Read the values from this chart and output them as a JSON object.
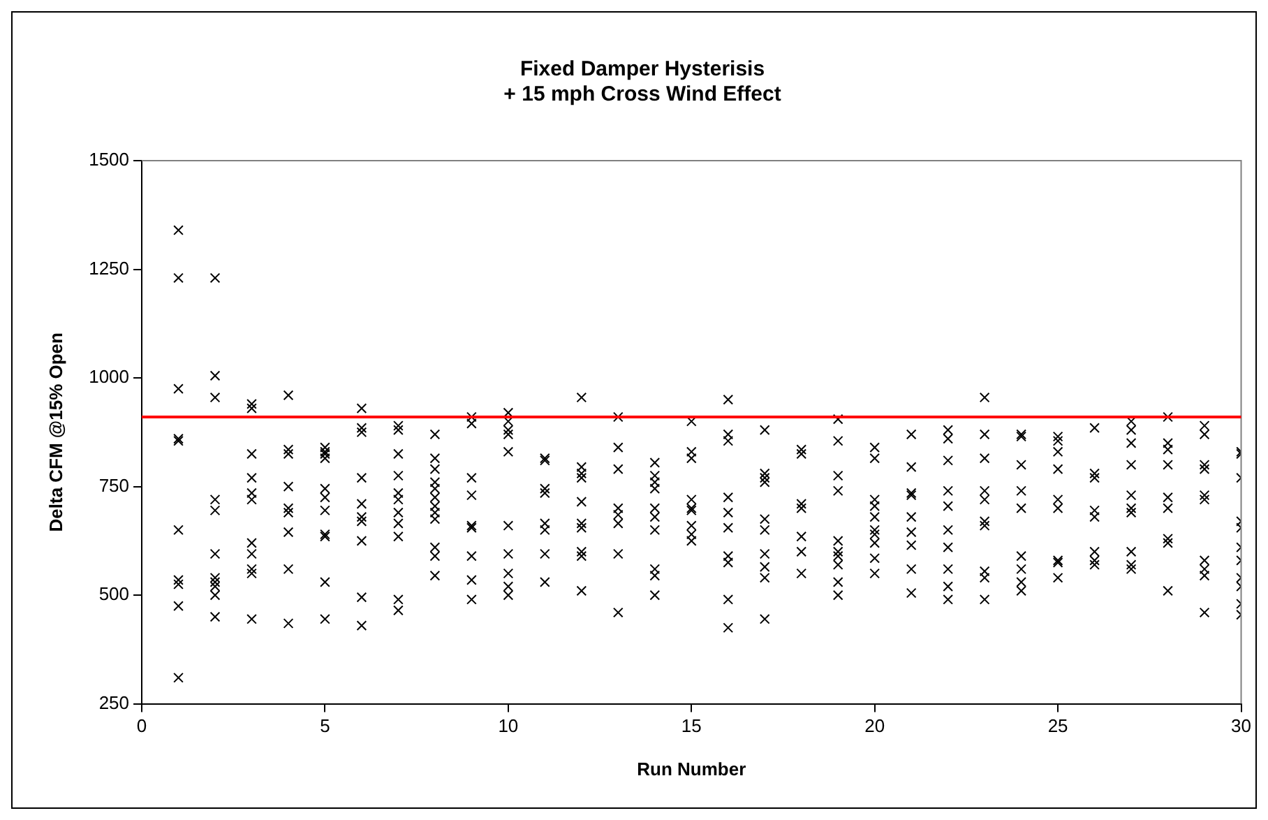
{
  "chart_data": {
    "type": "scatter",
    "title": "Fixed Damper Hysterisis\n+ 15 mph Cross Wind Effect",
    "xlabel": "Run Number",
    "ylabel": "Delta CFM @15% Open",
    "series": [
      {
        "color": "#000000",
        "x": [
          1,
          1,
          1,
          1,
          1,
          1,
          1,
          1,
          1,
          1,
          2,
          2,
          2,
          2,
          2,
          2,
          2,
          2,
          2,
          2,
          2,
          3,
          3,
          3,
          3,
          3,
          3,
          3,
          3,
          3,
          3,
          3,
          4,
          4,
          4,
          4,
          4,
          4,
          4,
          4,
          4,
          5,
          5,
          5,
          5,
          5,
          5,
          5,
          5,
          5,
          5,
          5,
          6,
          6,
          6,
          6,
          6,
          6,
          6,
          6,
          6,
          6,
          7,
          7,
          7,
          7,
          7,
          7,
          7,
          7,
          7,
          7,
          7,
          8,
          8,
          8,
          8,
          8,
          8,
          8,
          8,
          8,
          8,
          8,
          8,
          9,
          9,
          9,
          9,
          9,
          9,
          9,
          9,
          9,
          10,
          10,
          10,
          10,
          10,
          10,
          10,
          10,
          10,
          10,
          11,
          11,
          11,
          11,
          11,
          11,
          11,
          11,
          12,
          12,
          12,
          12,
          12,
          12,
          12,
          12,
          12,
          12,
          13,
          13,
          13,
          13,
          13,
          13,
          13,
          13,
          14,
          14,
          14,
          14,
          14,
          14,
          14,
          14,
          14,
          14,
          15,
          15,
          15,
          15,
          15,
          15,
          15,
          15,
          15,
          16,
          16,
          16,
          16,
          16,
          16,
          16,
          16,
          16,
          16,
          17,
          17,
          17,
          17,
          17,
          17,
          17,
          17,
          17,
          17,
          18,
          18,
          18,
          18,
          18,
          18,
          18,
          19,
          19,
          19,
          19,
          19,
          19,
          19,
          19,
          19,
          19,
          20,
          20,
          20,
          20,
          20,
          20,
          20,
          20,
          20,
          20,
          21,
          21,
          21,
          21,
          21,
          21,
          21,
          21,
          21,
          22,
          22,
          22,
          22,
          22,
          22,
          22,
          22,
          22,
          22,
          23,
          23,
          23,
          23,
          23,
          23,
          23,
          23,
          23,
          23,
          24,
          24,
          24,
          24,
          24,
          24,
          24,
          24,
          24,
          25,
          25,
          25,
          25,
          25,
          25,
          25,
          25,
          25,
          26,
          26,
          26,
          26,
          26,
          26,
          26,
          26,
          27,
          27,
          27,
          27,
          27,
          27,
          27,
          27,
          27,
          27,
          28,
          28,
          28,
          28,
          28,
          28,
          28,
          28,
          28,
          29,
          29,
          29,
          29,
          29,
          29,
          29,
          29,
          29,
          29,
          30,
          30,
          30,
          30,
          30,
          30,
          30,
          30,
          30,
          30,
          30
        ],
        "values": [
          1340,
          1230,
          975,
          860,
          855,
          650,
          535,
          525,
          475,
          310,
          1230,
          1005,
          955,
          720,
          695,
          595,
          540,
          530,
          520,
          500,
          450,
          940,
          930,
          825,
          770,
          735,
          720,
          620,
          595,
          560,
          550,
          445,
          960,
          835,
          825,
          750,
          700,
          690,
          645,
          560,
          435,
          840,
          830,
          825,
          815,
          745,
          725,
          695,
          640,
          635,
          530,
          445,
          930,
          885,
          875,
          770,
          710,
          680,
          670,
          625,
          495,
          430,
          890,
          880,
          825,
          775,
          735,
          720,
          690,
          665,
          635,
          490,
          465,
          870,
          815,
          790,
          760,
          745,
          725,
          705,
          690,
          675,
          610,
          590,
          545,
          910,
          895,
          770,
          730,
          660,
          655,
          590,
          535,
          490,
          920,
          900,
          880,
          870,
          830,
          660,
          595,
          550,
          520,
          500,
          815,
          810,
          745,
          735,
          665,
          650,
          595,
          530,
          955,
          795,
          780,
          770,
          715,
          665,
          655,
          600,
          590,
          510,
          910,
          840,
          790,
          700,
          685,
          665,
          595,
          460,
          805,
          775,
          760,
          745,
          700,
          680,
          650,
          560,
          545,
          500,
          900,
          830,
          815,
          720,
          700,
          695,
          660,
          640,
          625,
          950,
          870,
          855,
          725,
          690,
          655,
          590,
          575,
          490,
          425,
          880,
          780,
          770,
          760,
          675,
          650,
          595,
          565,
          540,
          445,
          835,
          825,
          710,
          700,
          635,
          600,
          550,
          905,
          855,
          775,
          740,
          625,
          600,
          590,
          570,
          530,
          500,
          840,
          815,
          720,
          705,
          680,
          650,
          640,
          620,
          585,
          550,
          870,
          795,
          735,
          730,
          680,
          645,
          615,
          560,
          505,
          880,
          860,
          810,
          740,
          705,
          650,
          610,
          560,
          520,
          490,
          955,
          870,
          815,
          740,
          720,
          670,
          660,
          555,
          540,
          490,
          870,
          865,
          800,
          740,
          700,
          590,
          560,
          530,
          510,
          865,
          855,
          830,
          790,
          720,
          700,
          580,
          575,
          540,
          885,
          780,
          770,
          695,
          680,
          600,
          580,
          570,
          900,
          880,
          850,
          800,
          730,
          700,
          690,
          600,
          570,
          560,
          910,
          850,
          835,
          800,
          725,
          700,
          630,
          620,
          510,
          890,
          870,
          800,
          790,
          730,
          720,
          580,
          560,
          545,
          460,
          830,
          825,
          770,
          670,
          655,
          610,
          580,
          540,
          520,
          480,
          455
        ]
      }
    ],
    "ref_lines": [
      {
        "axis": "y",
        "value": 910,
        "color": "#ff0000"
      }
    ],
    "xlim": [
      0,
      30
    ],
    "xticks": [
      0,
      5,
      10,
      15,
      20,
      25,
      30
    ],
    "ylim": [
      250,
      1500
    ],
    "yticks": [
      250,
      500,
      750,
      1000,
      1250,
      1500
    ],
    "grid": false,
    "legend": false,
    "marker": "cross"
  }
}
